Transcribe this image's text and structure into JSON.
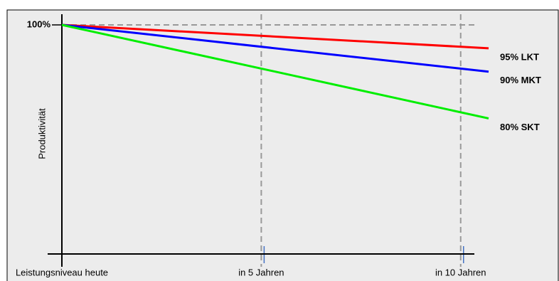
{
  "chart_data": {
    "type": "line",
    "y_label": "Produktivität",
    "xlim": [
      0,
      10.7
    ],
    "ylim": [
      51,
      100
    ],
    "xticks": [
      {
        "value": 0,
        "label": "Leistungsniveau heute"
      },
      {
        "value": 5,
        "label": "in 5 Jahren"
      },
      {
        "value": 10,
        "label": "in 10 Jahren"
      }
    ],
    "yticks": [
      {
        "value": 100,
        "label": "100%"
      }
    ],
    "grid": true,
    "series": [
      {
        "name": "95% LKT",
        "color": "#ff0000",
        "x": [
          0,
          10.7
        ],
        "values": [
          100,
          95
        ]
      },
      {
        "name": "90% MKT",
        "color": "#0000ff",
        "x": [
          0,
          10.7
        ],
        "values": [
          100,
          90
        ]
      },
      {
        "name": "80% SKT",
        "color": "#00ee00",
        "x": [
          0,
          10.7
        ],
        "values": [
          100,
          80
        ]
      }
    ]
  }
}
